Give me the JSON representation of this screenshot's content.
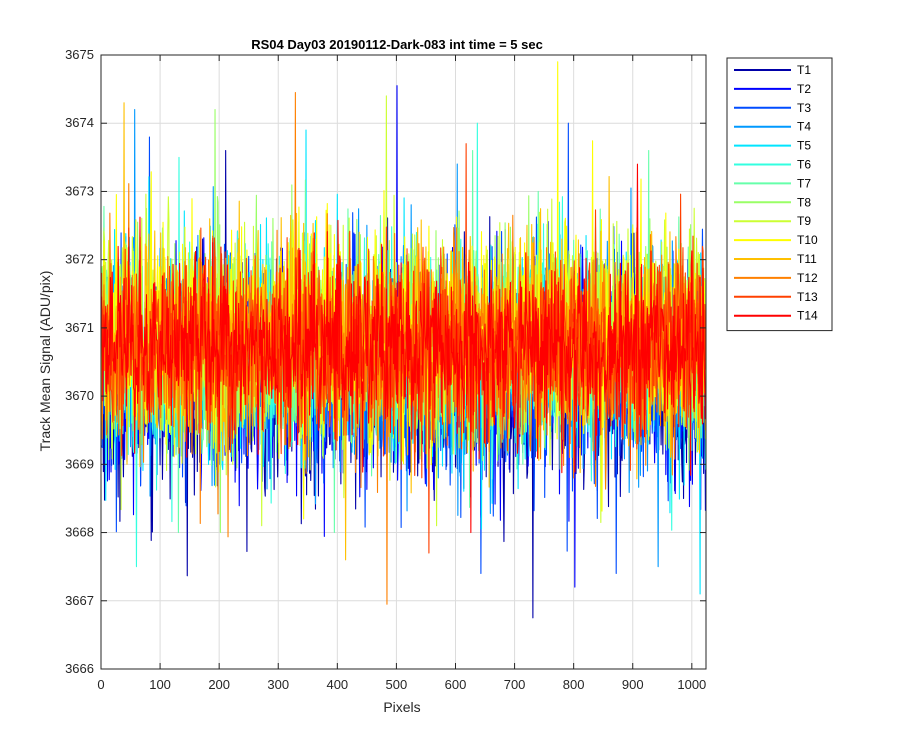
{
  "chart_data": {
    "type": "line",
    "title": "RS04 Day03 20190112-Dark-083 int time = 5 sec",
    "xlabel": "Pixels",
    "ylabel": "Track Mean Signal (ADU/pix)",
    "xlim": [
      0,
      1024
    ],
    "ylim": [
      3666,
      3675
    ],
    "xticks": [
      0,
      100,
      200,
      300,
      400,
      500,
      600,
      700,
      800,
      900,
      1000
    ],
    "yticks": [
      3666,
      3667,
      3668,
      3669,
      3670,
      3671,
      3672,
      3673,
      3674,
      3675
    ],
    "grid": true,
    "legend_position": "outside-right",
    "series": [
      {
        "name": "T1",
        "color": "#0000a8",
        "mean": 3670.2,
        "spread": 0.9,
        "min": 3666.75,
        "max": 3673.6
      },
      {
        "name": "T2",
        "color": "#0000ff",
        "mean": 3670.3,
        "spread": 0.85,
        "min": 3667.2,
        "max": 3674.55
      },
      {
        "name": "T3",
        "color": "#004cff",
        "mean": 3670.4,
        "spread": 0.85,
        "min": 3667.4,
        "max": 3674.0
      },
      {
        "name": "T4",
        "color": "#0099ff",
        "mean": 3670.5,
        "spread": 0.85,
        "min": 3667.5,
        "max": 3674.2
      },
      {
        "name": "T5",
        "color": "#00e5ff",
        "mean": 3670.6,
        "spread": 0.85,
        "min": 3667.1,
        "max": 3673.9
      },
      {
        "name": "T6",
        "color": "#33ffe0",
        "mean": 3670.7,
        "spread": 0.8,
        "min": 3667.5,
        "max": 3674.0
      },
      {
        "name": "T7",
        "color": "#66ffaa",
        "mean": 3670.75,
        "spread": 0.8,
        "min": 3668.0,
        "max": 3673.6
      },
      {
        "name": "T8",
        "color": "#99ff66",
        "mean": 3670.8,
        "spread": 0.8,
        "min": 3668.0,
        "max": 3674.2
      },
      {
        "name": "T9",
        "color": "#ccff33",
        "mean": 3670.85,
        "spread": 0.85,
        "min": 3668.1,
        "max": 3674.4
      },
      {
        "name": "T10",
        "color": "#ffff00",
        "mean": 3670.9,
        "spread": 0.85,
        "min": 3668.2,
        "max": 3674.9
      },
      {
        "name": "T11",
        "color": "#ffc000",
        "mean": 3670.8,
        "spread": 0.8,
        "min": 3667.6,
        "max": 3674.3
      },
      {
        "name": "T12",
        "color": "#ff8000",
        "mean": 3670.7,
        "spread": 0.8,
        "min": 3666.95,
        "max": 3674.45
      },
      {
        "name": "T13",
        "color": "#ff4000",
        "mean": 3670.7,
        "spread": 0.75,
        "min": 3667.7,
        "max": 3673.7
      },
      {
        "name": "T14",
        "color": "#ff0000",
        "mean": 3670.7,
        "spread": 0.7,
        "min": 3668.0,
        "max": 3673.4
      }
    ]
  }
}
